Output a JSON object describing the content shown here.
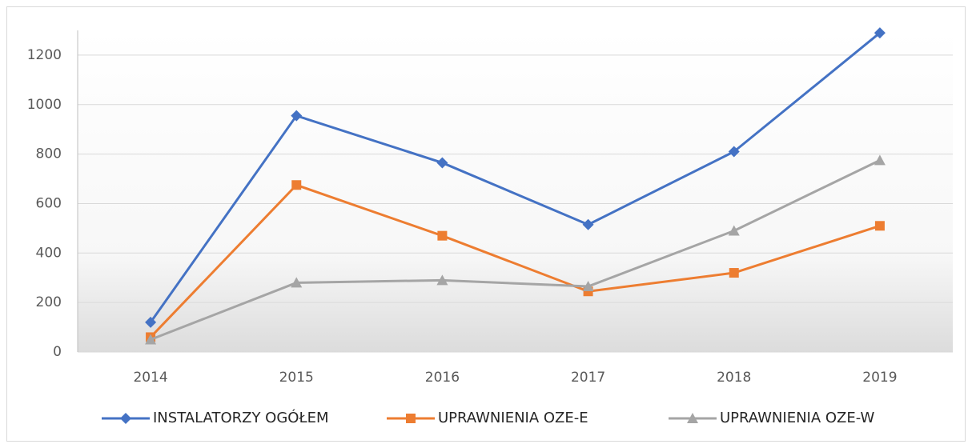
{
  "chart_data": {
    "type": "line",
    "categories": [
      "2014",
      "2015",
      "2016",
      "2017",
      "2018",
      "2019"
    ],
    "series": [
      {
        "name": "INSTALATORZY OGÓŁEM",
        "color": "#4472c4",
        "marker": "diamond",
        "values": [
          120,
          955,
          765,
          515,
          810,
          1290
        ]
      },
      {
        "name": "UPRAWNIENIA OZE-E",
        "color": "#ed7d31",
        "marker": "square",
        "values": [
          60,
          675,
          470,
          245,
          320,
          510
        ]
      },
      {
        "name": "UPRAWNIENIA OZE-W",
        "color": "#a5a5a5",
        "marker": "triangle",
        "values": [
          50,
          280,
          290,
          265,
          490,
          775
        ]
      }
    ],
    "ylim": [
      0,
      1300
    ],
    "yticks": [
      0,
      200,
      400,
      600,
      800,
      1000,
      1200
    ],
    "grid": true,
    "legend": "bottom"
  }
}
